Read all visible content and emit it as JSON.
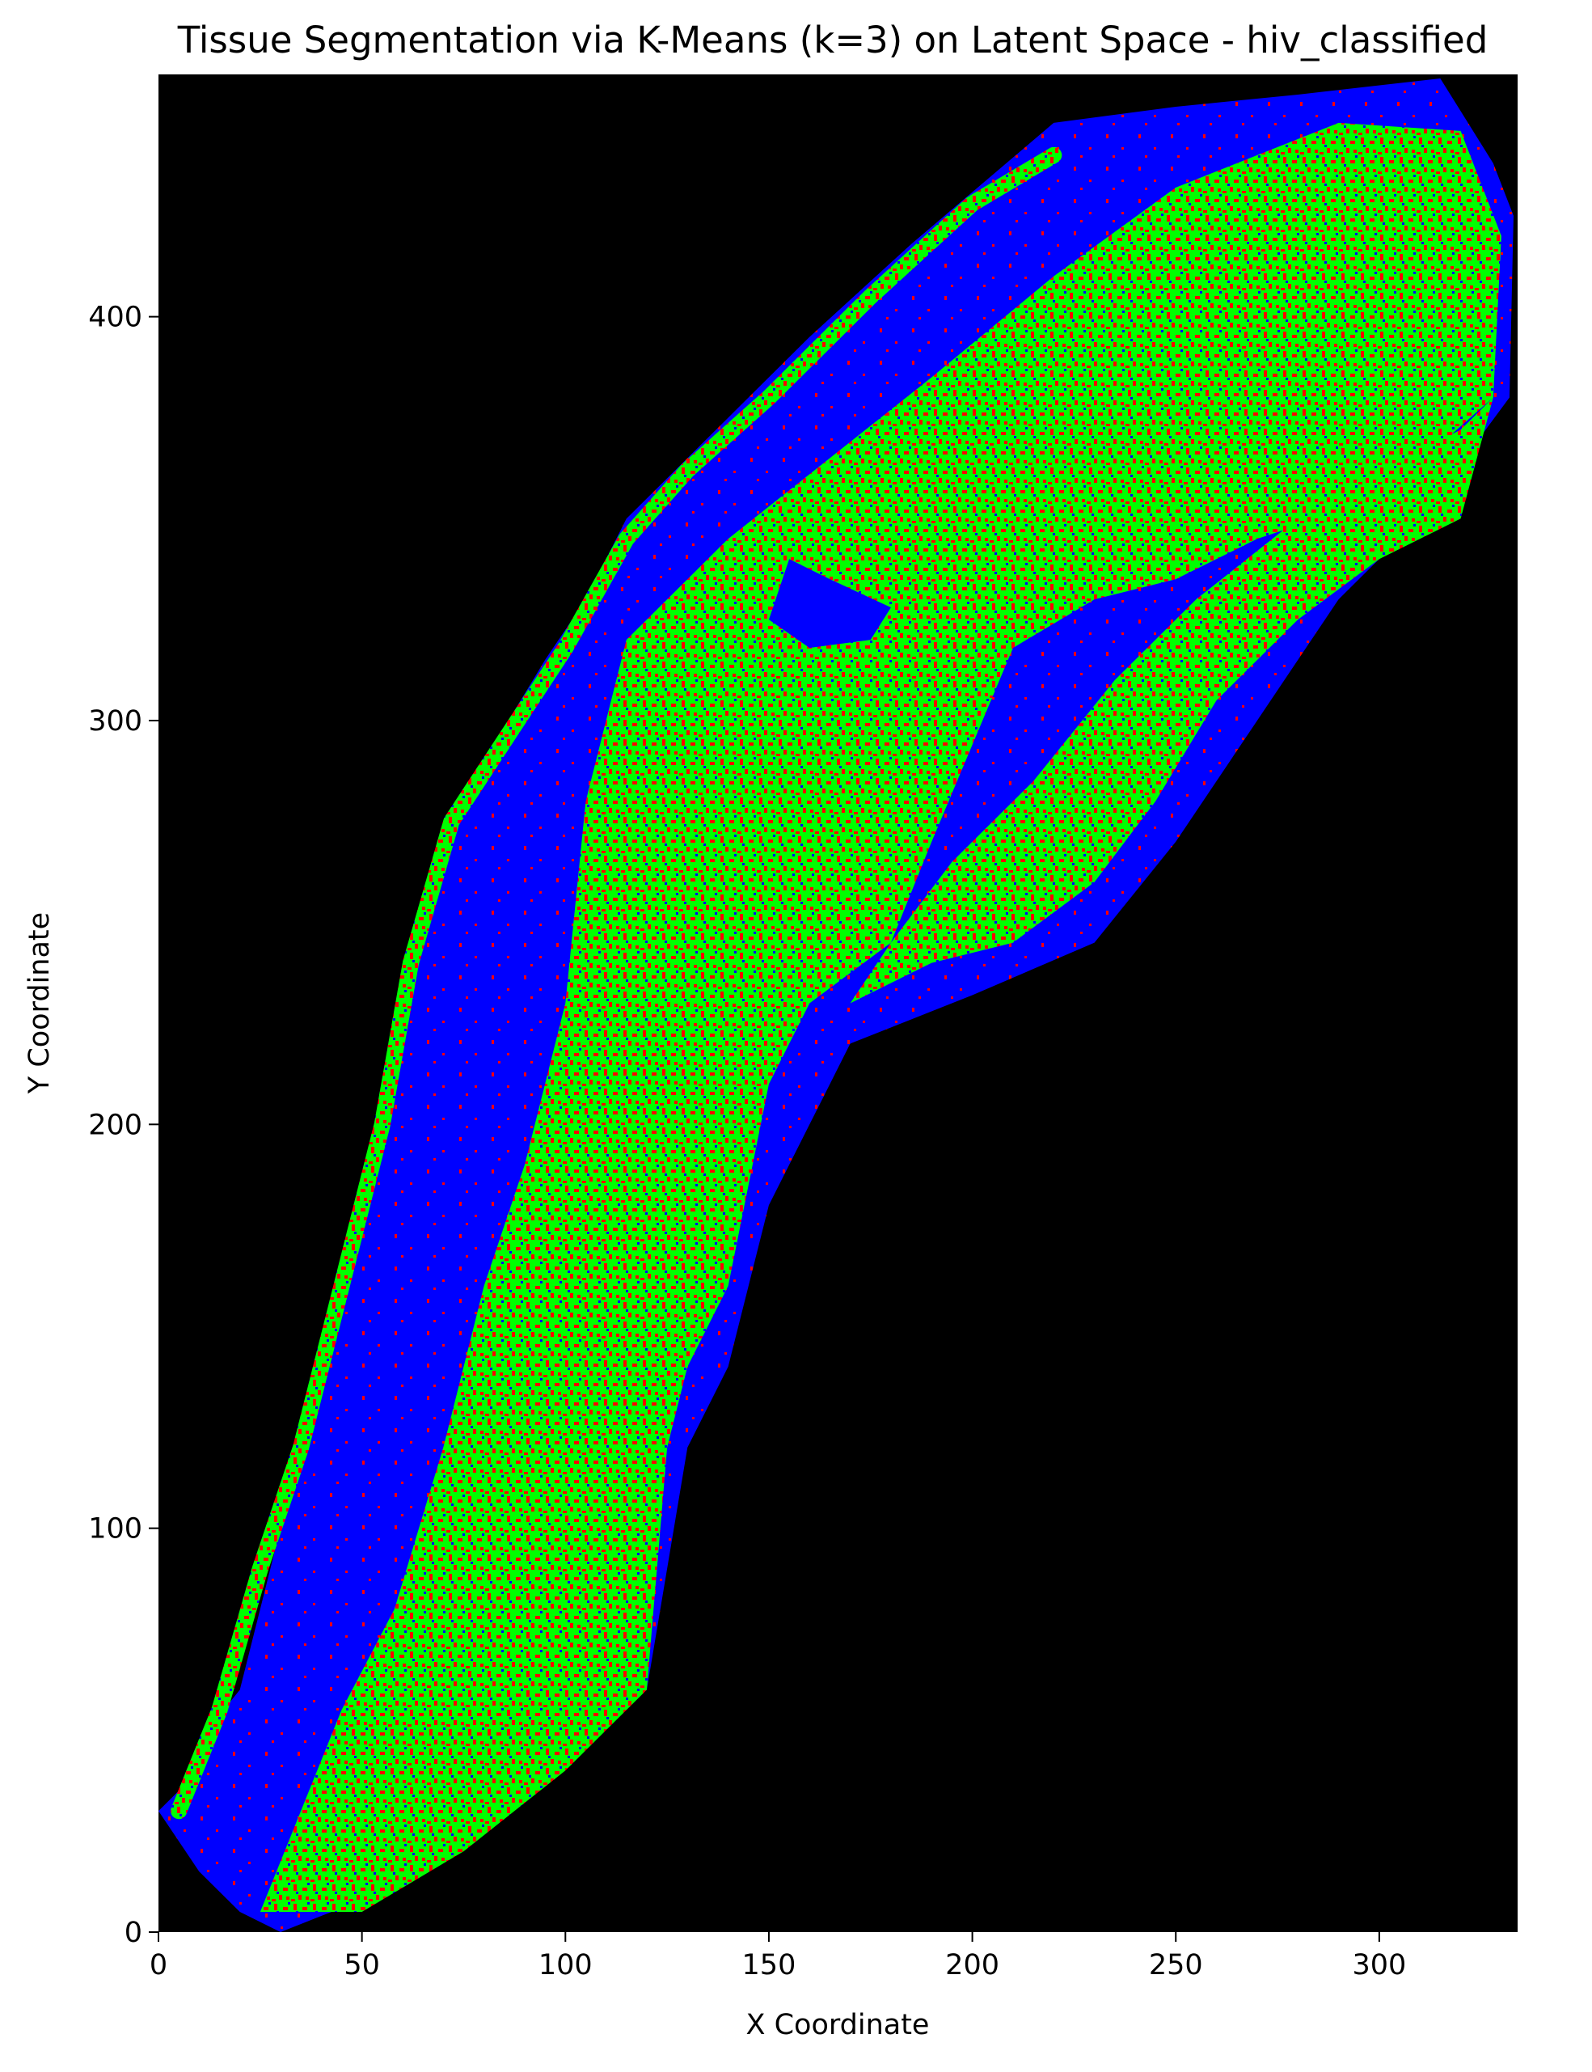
{
  "chart_data": {
    "type": "heatmap",
    "title": "Tissue Segmentation via K-Means (k=3) on Latent Space - hiv_classified",
    "xlabel": "X Coordinate",
    "ylabel": "Y Coordinate",
    "xlim": [
      0,
      334
    ],
    "ylim": [
      0,
      460
    ],
    "xticks": [
      0,
      50,
      100,
      150,
      200,
      250,
      300
    ],
    "yticks": [
      0,
      100,
      200,
      300,
      400
    ],
    "grid": false,
    "legend": "none",
    "background_color": "#000000",
    "cluster_colors": {
      "cluster_0": "#0000ff",
      "cluster_1": "#00ff00",
      "cluster_2": "#ff0000"
    },
    "regions": [
      {
        "name": "tissue_outline",
        "dominant_cluster": "cluster_0",
        "polygon": [
          [
            0,
            30
          ],
          [
            10,
            40
          ],
          [
            12,
            50
          ],
          [
            20,
            60
          ],
          [
            35,
            120
          ],
          [
            50,
            180
          ],
          [
            60,
            230
          ],
          [
            70,
            270
          ],
          [
            80,
            290
          ],
          [
            95,
            315
          ],
          [
            105,
            330
          ],
          [
            115,
            350
          ],
          [
            125,
            360
          ],
          [
            140,
            375
          ],
          [
            160,
            395
          ],
          [
            185,
            418
          ],
          [
            220,
            448
          ],
          [
            250,
            452
          ],
          [
            280,
            455
          ],
          [
            315,
            459
          ],
          [
            328,
            438
          ],
          [
            333,
            425
          ],
          [
            332,
            380
          ],
          [
            310,
            350
          ],
          [
            290,
            330
          ],
          [
            270,
            300
          ],
          [
            250,
            270
          ],
          [
            230,
            245
          ],
          [
            200,
            232
          ],
          [
            170,
            220
          ],
          [
            160,
            200
          ],
          [
            150,
            180
          ],
          [
            140,
            140
          ],
          [
            130,
            120
          ],
          [
            120,
            60
          ],
          [
            105,
            50
          ],
          [
            75,
            22
          ],
          [
            55,
            10
          ],
          [
            30,
            0
          ],
          [
            20,
            5
          ],
          [
            10,
            15
          ]
        ]
      },
      {
        "name": "inner_green_band",
        "dominant_cluster": "cluster_1",
        "mix_cluster": "cluster_2",
        "mix_fraction": 0.3,
        "polygon": [
          [
            25,
            5
          ],
          [
            35,
            30
          ],
          [
            45,
            55
          ],
          [
            58,
            80
          ],
          [
            70,
            120
          ],
          [
            80,
            160
          ],
          [
            90,
            190
          ],
          [
            100,
            230
          ],
          [
            105,
            280
          ],
          [
            115,
            320
          ],
          [
            140,
            345
          ],
          [
            165,
            365
          ],
          [
            190,
            385
          ],
          [
            220,
            410
          ],
          [
            250,
            432
          ],
          [
            290,
            448
          ],
          [
            320,
            446
          ],
          [
            330,
            420
          ],
          [
            328,
            380
          ],
          [
            300,
            355
          ],
          [
            270,
            345
          ],
          [
            250,
            335
          ],
          [
            230,
            330
          ],
          [
            210,
            318
          ],
          [
            190,
            270
          ],
          [
            180,
            245
          ],
          [
            160,
            230
          ],
          [
            150,
            210
          ],
          [
            140,
            160
          ],
          [
            130,
            140
          ],
          [
            125,
            120
          ],
          [
            120,
            60
          ],
          [
            100,
            40
          ],
          [
            75,
            20
          ],
          [
            50,
            5
          ]
        ]
      },
      {
        "name": "right_green_band",
        "dominant_cluster": "cluster_1",
        "mix_cluster": "cluster_2",
        "mix_fraction": 0.3,
        "polygon": [
          [
            170,
            230
          ],
          [
            180,
            245
          ],
          [
            195,
            265
          ],
          [
            215,
            285
          ],
          [
            235,
            310
          ],
          [
            255,
            330
          ],
          [
            280,
            350
          ],
          [
            300,
            362
          ],
          [
            320,
            372
          ],
          [
            328,
            380
          ],
          [
            320,
            350
          ],
          [
            300,
            340
          ],
          [
            280,
            325
          ],
          [
            260,
            305
          ],
          [
            245,
            280
          ],
          [
            230,
            260
          ],
          [
            210,
            245
          ],
          [
            190,
            240
          ]
        ]
      },
      {
        "name": "blue_pocket",
        "dominant_cluster": "cluster_0",
        "polygon": [
          [
            155,
            340
          ],
          [
            165,
            335
          ],
          [
            180,
            328
          ],
          [
            175,
            320
          ],
          [
            160,
            318
          ],
          [
            150,
            325
          ]
        ]
      },
      {
        "name": "outer_green_rim",
        "dominant_cluster": "cluster_1",
        "mix_cluster": "cluster_2",
        "mix_fraction": 0.3,
        "polyline": [
          [
            5,
            30
          ],
          [
            15,
            55
          ],
          [
            25,
            90
          ],
          [
            35,
            120
          ],
          [
            45,
            160
          ],
          [
            55,
            200
          ],
          [
            62,
            240
          ],
          [
            72,
            275
          ],
          [
            85,
            295
          ],
          [
            100,
            318
          ],
          [
            115,
            345
          ],
          [
            130,
            362
          ],
          [
            150,
            380
          ],
          [
            175,
            405
          ],
          [
            200,
            428
          ],
          [
            220,
            440
          ]
        ],
        "width_units": 4
      }
    ]
  }
}
